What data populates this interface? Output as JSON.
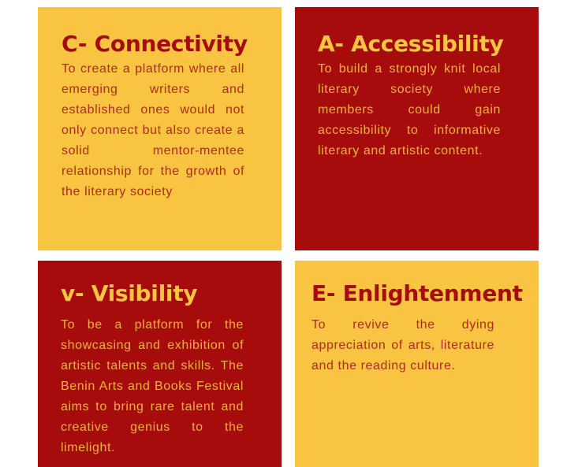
{
  "tiles": {
    "connectivity": {
      "title": "C- Connectivity",
      "body": "To create a platform where all emerging writers and established ones would not only connect but also create a solid mentor-mentee relationship for the growth of the literary society"
    },
    "accessibility": {
      "title": "A- Accessibility",
      "body": "To build a strongly knit local literary society where members could gain accessibility to informative literary and artistic content."
    },
    "visibility": {
      "title": "v- Visibility",
      "body": "To be a platform for the showcasing and exhibition of artistic talents and skills. The Benin Arts and Books Festival aims to bring rare talent and creative genius to the limelight."
    },
    "enlightenment": {
      "title": "E- Enlightenment",
      "body": "To revive the dying appreciation of arts, literature and the reading culture."
    }
  },
  "colors": {
    "yellow": "#f8c441",
    "red": "#a70c0c",
    "background": "#ffffff"
  }
}
